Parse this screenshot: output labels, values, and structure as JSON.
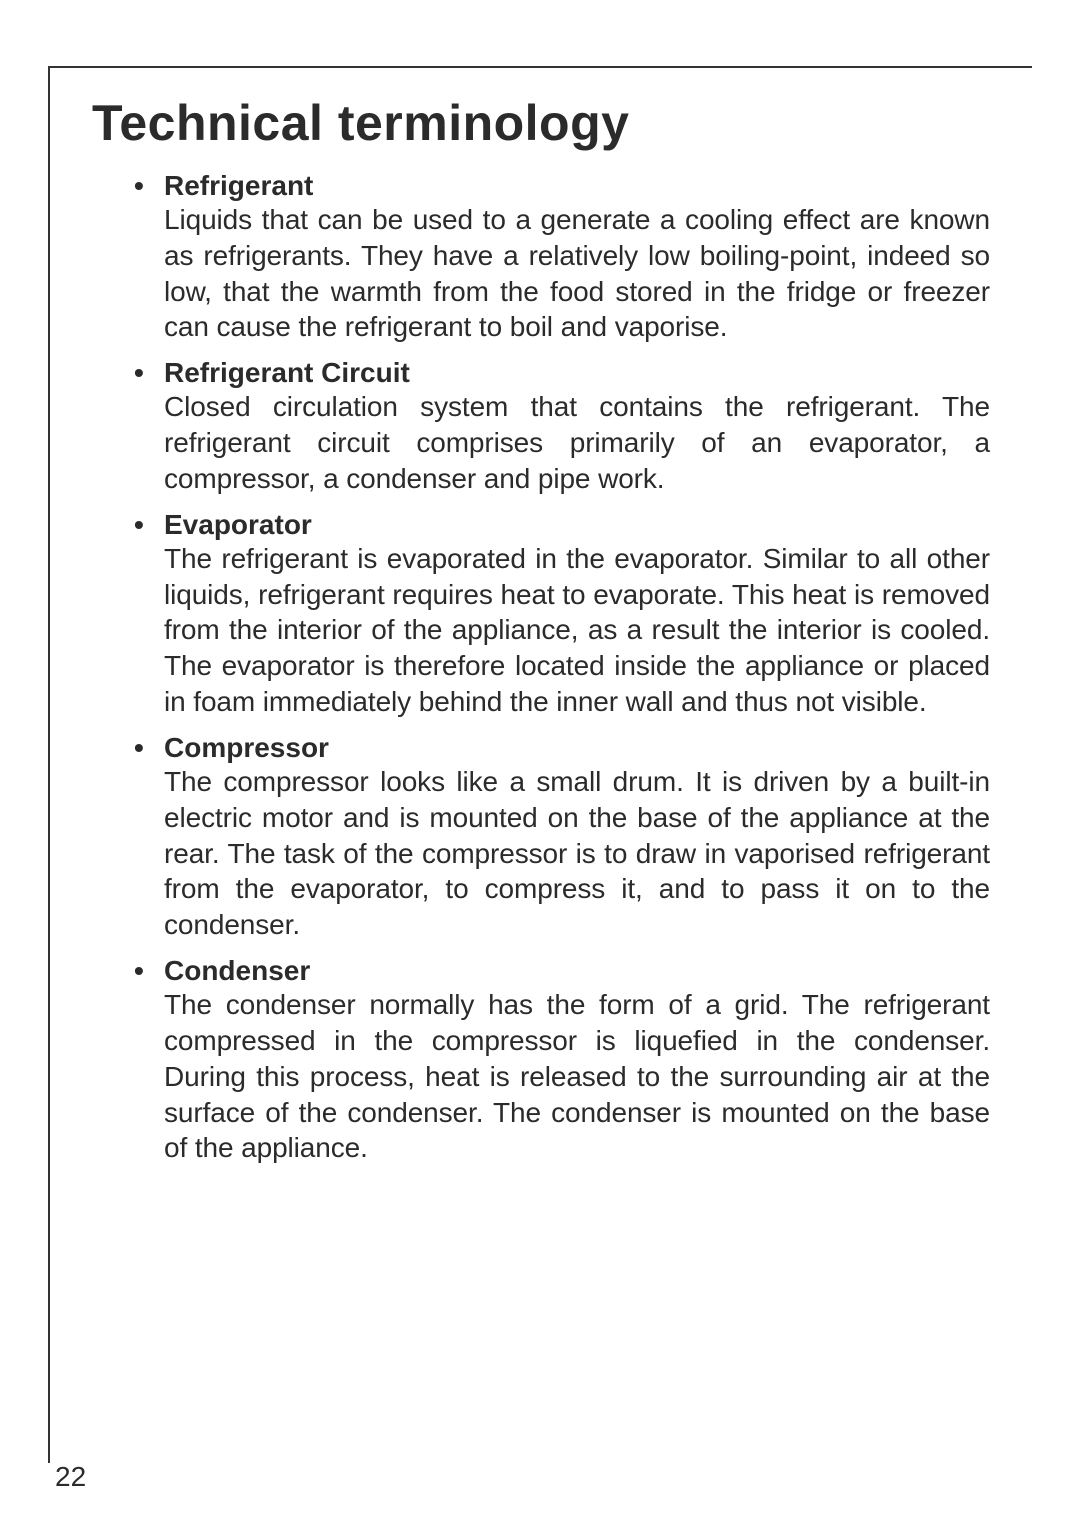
{
  "page": {
    "heading": "Technical terminology",
    "number": "22"
  },
  "terms": [
    {
      "title": "Refrigerant",
      "body": "Liquids that can be used to a generate a cooling effect are known as refrigerants. They have a relatively low boiling-point, indeed so low, that the warmth from the food stored in the fridge or freezer can cause the refrigerant to boil and vaporise."
    },
    {
      "title": "Refrigerant Circuit",
      "body": "Closed circulation system that contains the refrigerant. The refrigerant circuit comprises primarily of an evaporator, a compressor, a condenser and pipe work."
    },
    {
      "title": "Evaporator",
      "body": "The refrigerant is evaporated in the evaporator. Similar to all other liquids, refrigerant requires heat to evaporate. This heat is removed from the interior of the appliance, as a result the interior is cooled. The evaporator is therefore located inside the appliance or placed in foam immediately behind the inner wall and thus not visible."
    },
    {
      "title": "Compressor",
      "body": "The compressor looks like a small drum. It is driven by a built-in electric motor and is mounted on the base of the appliance at the rear. The task of the compressor is to draw in vaporised refrigerant from the evaporator, to compress it, and to pass it on to the condenser."
    },
    {
      "title": "Condenser",
      "body": "The condenser normally has the form of a grid. The refrigerant compressed in the compressor is liquefied in the condenser. During this process, heat is released to the surrounding air at the surface of the condenser. The condenser is mounted on the base of the appliance."
    }
  ]
}
